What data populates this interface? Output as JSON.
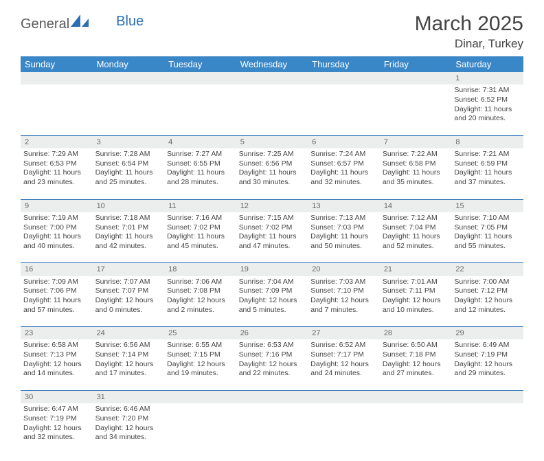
{
  "brand": {
    "part1": "General",
    "part2": "Blue"
  },
  "title": "March 2025",
  "location": "Dinar, Turkey",
  "colors": {
    "header_bg": "#3a87c8",
    "header_text": "#ffffff",
    "daynum_bg": "#eceeee",
    "grid_line": "#2b6fb5",
    "text": "#444444",
    "page_bg": "#ffffff"
  },
  "weekdays": [
    "Sunday",
    "Monday",
    "Tuesday",
    "Wednesday",
    "Thursday",
    "Friday",
    "Saturday"
  ],
  "weeks": [
    {
      "nums": [
        "",
        "",
        "",
        "",
        "",
        "",
        "1"
      ],
      "cells": [
        null,
        null,
        null,
        null,
        null,
        null,
        {
          "sunrise": "Sunrise: 7:31 AM",
          "sunset": "Sunset: 6:52 PM",
          "day1": "Daylight: 11 hours",
          "day2": "and 20 minutes."
        }
      ]
    },
    {
      "nums": [
        "2",
        "3",
        "4",
        "5",
        "6",
        "7",
        "8"
      ],
      "cells": [
        {
          "sunrise": "Sunrise: 7:29 AM",
          "sunset": "Sunset: 6:53 PM",
          "day1": "Daylight: 11 hours",
          "day2": "and 23 minutes."
        },
        {
          "sunrise": "Sunrise: 7:28 AM",
          "sunset": "Sunset: 6:54 PM",
          "day1": "Daylight: 11 hours",
          "day2": "and 25 minutes."
        },
        {
          "sunrise": "Sunrise: 7:27 AM",
          "sunset": "Sunset: 6:55 PM",
          "day1": "Daylight: 11 hours",
          "day2": "and 28 minutes."
        },
        {
          "sunrise": "Sunrise: 7:25 AM",
          "sunset": "Sunset: 6:56 PM",
          "day1": "Daylight: 11 hours",
          "day2": "and 30 minutes."
        },
        {
          "sunrise": "Sunrise: 7:24 AM",
          "sunset": "Sunset: 6:57 PM",
          "day1": "Daylight: 11 hours",
          "day2": "and 32 minutes."
        },
        {
          "sunrise": "Sunrise: 7:22 AM",
          "sunset": "Sunset: 6:58 PM",
          "day1": "Daylight: 11 hours",
          "day2": "and 35 minutes."
        },
        {
          "sunrise": "Sunrise: 7:21 AM",
          "sunset": "Sunset: 6:59 PM",
          "day1": "Daylight: 11 hours",
          "day2": "and 37 minutes."
        }
      ]
    },
    {
      "nums": [
        "9",
        "10",
        "11",
        "12",
        "13",
        "14",
        "15"
      ],
      "cells": [
        {
          "sunrise": "Sunrise: 7:19 AM",
          "sunset": "Sunset: 7:00 PM",
          "day1": "Daylight: 11 hours",
          "day2": "and 40 minutes."
        },
        {
          "sunrise": "Sunrise: 7:18 AM",
          "sunset": "Sunset: 7:01 PM",
          "day1": "Daylight: 11 hours",
          "day2": "and 42 minutes."
        },
        {
          "sunrise": "Sunrise: 7:16 AM",
          "sunset": "Sunset: 7:02 PM",
          "day1": "Daylight: 11 hours",
          "day2": "and 45 minutes."
        },
        {
          "sunrise": "Sunrise: 7:15 AM",
          "sunset": "Sunset: 7:02 PM",
          "day1": "Daylight: 11 hours",
          "day2": "and 47 minutes."
        },
        {
          "sunrise": "Sunrise: 7:13 AM",
          "sunset": "Sunset: 7:03 PM",
          "day1": "Daylight: 11 hours",
          "day2": "and 50 minutes."
        },
        {
          "sunrise": "Sunrise: 7:12 AM",
          "sunset": "Sunset: 7:04 PM",
          "day1": "Daylight: 11 hours",
          "day2": "and 52 minutes."
        },
        {
          "sunrise": "Sunrise: 7:10 AM",
          "sunset": "Sunset: 7:05 PM",
          "day1": "Daylight: 11 hours",
          "day2": "and 55 minutes."
        }
      ]
    },
    {
      "nums": [
        "16",
        "17",
        "18",
        "19",
        "20",
        "21",
        "22"
      ],
      "cells": [
        {
          "sunrise": "Sunrise: 7:09 AM",
          "sunset": "Sunset: 7:06 PM",
          "day1": "Daylight: 11 hours",
          "day2": "and 57 minutes."
        },
        {
          "sunrise": "Sunrise: 7:07 AM",
          "sunset": "Sunset: 7:07 PM",
          "day1": "Daylight: 12 hours",
          "day2": "and 0 minutes."
        },
        {
          "sunrise": "Sunrise: 7:06 AM",
          "sunset": "Sunset: 7:08 PM",
          "day1": "Daylight: 12 hours",
          "day2": "and 2 minutes."
        },
        {
          "sunrise": "Sunrise: 7:04 AM",
          "sunset": "Sunset: 7:09 PM",
          "day1": "Daylight: 12 hours",
          "day2": "and 5 minutes."
        },
        {
          "sunrise": "Sunrise: 7:03 AM",
          "sunset": "Sunset: 7:10 PM",
          "day1": "Daylight: 12 hours",
          "day2": "and 7 minutes."
        },
        {
          "sunrise": "Sunrise: 7:01 AM",
          "sunset": "Sunset: 7:11 PM",
          "day1": "Daylight: 12 hours",
          "day2": "and 10 minutes."
        },
        {
          "sunrise": "Sunrise: 7:00 AM",
          "sunset": "Sunset: 7:12 PM",
          "day1": "Daylight: 12 hours",
          "day2": "and 12 minutes."
        }
      ]
    },
    {
      "nums": [
        "23",
        "24",
        "25",
        "26",
        "27",
        "28",
        "29"
      ],
      "cells": [
        {
          "sunrise": "Sunrise: 6:58 AM",
          "sunset": "Sunset: 7:13 PM",
          "day1": "Daylight: 12 hours",
          "day2": "and 14 minutes."
        },
        {
          "sunrise": "Sunrise: 6:56 AM",
          "sunset": "Sunset: 7:14 PM",
          "day1": "Daylight: 12 hours",
          "day2": "and 17 minutes."
        },
        {
          "sunrise": "Sunrise: 6:55 AM",
          "sunset": "Sunset: 7:15 PM",
          "day1": "Daylight: 12 hours",
          "day2": "and 19 minutes."
        },
        {
          "sunrise": "Sunrise: 6:53 AM",
          "sunset": "Sunset: 7:16 PM",
          "day1": "Daylight: 12 hours",
          "day2": "and 22 minutes."
        },
        {
          "sunrise": "Sunrise: 6:52 AM",
          "sunset": "Sunset: 7:17 PM",
          "day1": "Daylight: 12 hours",
          "day2": "and 24 minutes."
        },
        {
          "sunrise": "Sunrise: 6:50 AM",
          "sunset": "Sunset: 7:18 PM",
          "day1": "Daylight: 12 hours",
          "day2": "and 27 minutes."
        },
        {
          "sunrise": "Sunrise: 6:49 AM",
          "sunset": "Sunset: 7:19 PM",
          "day1": "Daylight: 12 hours",
          "day2": "and 29 minutes."
        }
      ]
    },
    {
      "nums": [
        "30",
        "31",
        "",
        "",
        "",
        "",
        ""
      ],
      "cells": [
        {
          "sunrise": "Sunrise: 6:47 AM",
          "sunset": "Sunset: 7:19 PM",
          "day1": "Daylight: 12 hours",
          "day2": "and 32 minutes."
        },
        {
          "sunrise": "Sunrise: 6:46 AM",
          "sunset": "Sunset: 7:20 PM",
          "day1": "Daylight: 12 hours",
          "day2": "and 34 minutes."
        },
        null,
        null,
        null,
        null,
        null
      ]
    }
  ]
}
